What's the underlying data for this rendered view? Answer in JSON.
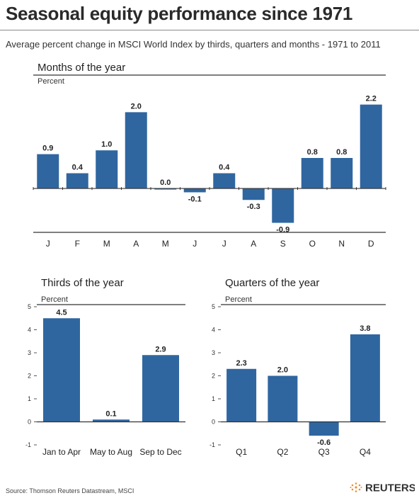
{
  "header": {
    "title": "Seasonal equity performance since 1971",
    "subtitle": "Average percent change in MSCI World Index by thirds, quarters and months - 1971 to 2011"
  },
  "footer": {
    "source": "Source:  Thomson Reuters Datastream, MSCI",
    "logo_text": "REUTERS"
  },
  "colors": {
    "bar": "#2f66a0",
    "rule": "#333333"
  },
  "chart_data": [
    {
      "id": "months",
      "type": "bar",
      "title": "Months of the year",
      "ylabel": "Percent",
      "categories": [
        "J",
        "F",
        "M",
        "A",
        "M",
        "J",
        "J",
        "A",
        "S",
        "O",
        "N",
        "D"
      ],
      "values": [
        0.9,
        0.4,
        1.0,
        2.0,
        0.0,
        -0.1,
        0.4,
        -0.3,
        -0.9,
        0.8,
        0.8,
        2.2
      ],
      "value_labels": [
        "0.9",
        "0.4",
        "1.0",
        "2.0",
        "0.0",
        "-0.1",
        "0.4",
        "-0.3",
        "-0.9",
        "0.8",
        "0.8",
        "2.2"
      ],
      "ylim": [
        -1.15,
        2.75
      ],
      "yticks": []
    },
    {
      "id": "thirds",
      "type": "bar",
      "title": "Thirds of the year",
      "ylabel": "Percent",
      "categories": [
        "Jan to Apr",
        "May to Aug",
        "Sep to Dec"
      ],
      "values": [
        4.5,
        0.1,
        2.9
      ],
      "value_labels": [
        "4.5",
        "0.1",
        "2.9"
      ],
      "ylim": [
        -1,
        5
      ],
      "yticks": [
        "-1",
        "0",
        "1",
        "2",
        "3",
        "4",
        "5"
      ]
    },
    {
      "id": "quarters",
      "type": "bar",
      "title": "Quarters of the year",
      "ylabel": "Percent",
      "categories": [
        "Q1",
        "Q2",
        "Q3",
        "Q4"
      ],
      "values": [
        2.3,
        2.0,
        -0.6,
        3.8
      ],
      "value_labels": [
        "2.3",
        "2.0",
        "-0.6",
        "3.8"
      ],
      "ylim": [
        -1,
        5
      ],
      "yticks": [
        "-1",
        "0",
        "1",
        "2",
        "3",
        "4",
        "5"
      ]
    }
  ]
}
